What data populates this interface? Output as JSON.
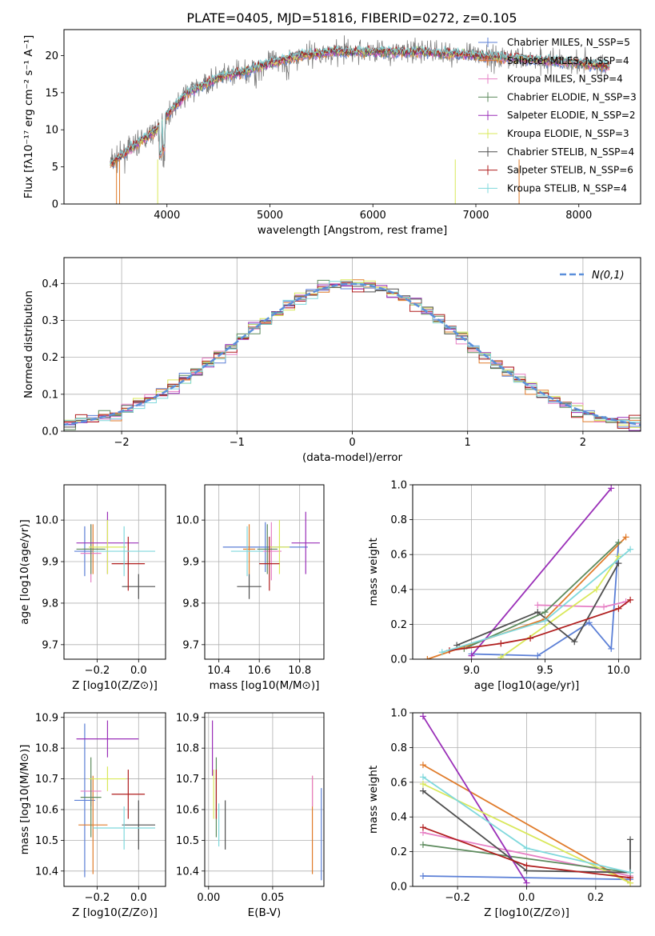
{
  "title": "PLATE=0405, MJD=51816, FIBERID=0272, z=0.105",
  "colors": [
    "#5b7fd6",
    "#e07b2a",
    "#e67fc4",
    "#5c8a5c",
    "#9a2fb8",
    "#d9e85a",
    "#4f4f4f",
    "#b01e1e",
    "#7fd8dc"
  ],
  "chart_data": [
    {
      "type": "line",
      "xlabel": "wavelength [Angstrom, rest frame]",
      "ylabel": "Flux [fλ10⁻¹⁷ erg cm⁻² s⁻¹ A⁻¹]",
      "xlim": [
        3000,
        8600
      ],
      "ylim": [
        0,
        23.5
      ],
      "xticks": [
        "4000",
        "5000",
        "6000",
        "7000",
        "8000"
      ],
      "yticks": [
        "0",
        "5",
        "10",
        "15",
        "20"
      ],
      "grid": false,
      "legend": "upper-right",
      "legend_entries": [
        "Chabrier MILES, N_SSP=5",
        "Salpeter MILES, N_SSP=4",
        "Kroupa MILES, N_SSP=4",
        "Chabrier ELODIE, N_SSP=3",
        "Salpeter ELODIE, N_SSP=2",
        "Kroupa ELODIE, N_SSP=3",
        "Chabrier STELIB, N_SSP=4",
        "Salpeter STELIB, N_SSP=6",
        "Kroupa STELIB, N_SSP=4"
      ],
      "data_flux_knots": [
        [
          3450,
          5.5
        ],
        [
          3600,
          7
        ],
        [
          3700,
          8
        ],
        [
          3900,
          10
        ],
        [
          4000,
          12
        ],
        [
          4200,
          15
        ],
        [
          4500,
          17
        ],
        [
          4800,
          18
        ],
        [
          5000,
          19
        ],
        [
          5300,
          20
        ],
        [
          5600,
          20.5
        ],
        [
          6000,
          20.5
        ],
        [
          6500,
          20.5
        ],
        [
          7000,
          20
        ],
        [
          7500,
          19.5
        ],
        [
          8000,
          19
        ],
        [
          8300,
          18.5
        ]
      ]
    },
    {
      "type": "histogram",
      "xlabel": "(data-model)/error",
      "ylabel": "Normed distribution",
      "xlim": [
        -2.5,
        2.5
      ],
      "ylim": [
        0,
        0.47
      ],
      "xticks": [
        "−2",
        "−1",
        "0",
        "1",
        "2"
      ],
      "yticks": [
        "0.0",
        "0.1",
        "0.2",
        "0.3",
        "0.4"
      ],
      "grid": true,
      "legend": "upper-right",
      "legend_entries": [
        "N(0,1)"
      ],
      "bin_width": 0.1
    },
    {
      "type": "scatter",
      "xlabel": "Z [log10(Z/Z⊙)]",
      "ylabel": "age  [log10(age/yr)]",
      "xlim": [
        -0.36,
        0.13
      ],
      "ylim": [
        9.665,
        10.085
      ],
      "xticks": [
        "−0.2",
        "0.0"
      ],
      "yticks": [
        "9.7",
        "9.8",
        "9.9",
        "10.0"
      ],
      "grid": true,
      "points": [
        {
          "x": -0.26,
          "y": 9.925,
          "xerr": 0.05,
          "yerr": 0.06
        },
        {
          "x": -0.22,
          "y": 9.93,
          "xerr": 0.05,
          "yerr": 0.06
        },
        {
          "x": -0.23,
          "y": 9.92,
          "xerr": 0.05,
          "yerr": 0.07
        },
        {
          "x": -0.23,
          "y": 9.93,
          "xerr": 0.07,
          "yerr": 0.06
        },
        {
          "x": -0.15,
          "y": 9.945,
          "xerr": 0.15,
          "yerr": 0.075
        },
        {
          "x": -0.15,
          "y": 9.935,
          "xerr": 0.09,
          "yerr": 0.065
        },
        {
          "x": 0.0,
          "y": 9.84,
          "xerr": 0.08,
          "yerr": 0.03
        },
        {
          "x": -0.05,
          "y": 9.895,
          "xerr": 0.08,
          "yerr": 0.065
        },
        {
          "x": -0.07,
          "y": 9.925,
          "xerr": 0.15,
          "yerr": 0.06
        }
      ]
    },
    {
      "type": "scatter",
      "xlabel": "mass [log10(M/M⊙)]",
      "ylabel": "",
      "xlim": [
        10.33,
        10.92
      ],
      "ylim": [
        9.665,
        10.085
      ],
      "xticks": [
        "10.4",
        "10.6",
        "10.8"
      ],
      "yticks": [
        "9.7",
        "9.8",
        "9.9",
        "10.0"
      ],
      "grid": true,
      "points": [
        {
          "x": 10.63,
          "y": 9.935,
          "xerr": 0.21,
          "yerr": 0.06
        },
        {
          "x": 10.55,
          "y": 9.93,
          "xerr": 0.03,
          "yerr": 0.06
        },
        {
          "x": 10.66,
          "y": 9.925,
          "xerr": 0.05,
          "yerr": 0.07
        },
        {
          "x": 10.64,
          "y": 9.93,
          "xerr": 0.05,
          "yerr": 0.06
        },
        {
          "x": 10.83,
          "y": 9.945,
          "xerr": 0.07,
          "yerr": 0.075
        },
        {
          "x": 10.7,
          "y": 9.935,
          "xerr": 0.05,
          "yerr": 0.065
        },
        {
          "x": 10.55,
          "y": 9.84,
          "xerr": 0.06,
          "yerr": 0.03
        },
        {
          "x": 10.65,
          "y": 9.895,
          "xerr": 0.05,
          "yerr": 0.065
        },
        {
          "x": 10.54,
          "y": 9.925,
          "xerr": 0.08,
          "yerr": 0.06
        }
      ]
    },
    {
      "type": "line",
      "xlabel": "age  [log10(age/yr)]",
      "ylabel": "mass weight",
      "xlim": [
        8.6,
        10.15
      ],
      "ylim": [
        0,
        1.0
      ],
      "xticks": [
        "9.0",
        "9.5",
        "10.0"
      ],
      "yticks": [
        "0.0",
        "0.2",
        "0.4",
        "0.6",
        "0.8",
        "1.0"
      ],
      "grid": true,
      "series": [
        {
          "points": [
            [
              9.0,
              0.03
            ],
            [
              9.45,
              0.02
            ],
            [
              9.8,
              0.21
            ],
            [
              9.95,
              0.06
            ],
            [
              10.0,
              0.67
            ]
          ]
        },
        {
          "points": [
            [
              8.7,
              0.0
            ],
            [
              9.5,
              0.23
            ],
            [
              10.05,
              0.7
            ]
          ]
        },
        {
          "points": [
            [
              9.45,
              0.31
            ],
            [
              9.9,
              0.3
            ],
            [
              10.05,
              0.33
            ]
          ]
        },
        {
          "points": [
            [
              8.95,
              0.06
            ],
            [
              9.5,
              0.27
            ],
            [
              10.0,
              0.67
            ]
          ]
        },
        {
          "points": [
            [
              9.0,
              0.02
            ],
            [
              9.95,
              0.98
            ]
          ]
        },
        {
          "points": [
            [
              9.2,
              0.01
            ],
            [
              9.85,
              0.4
            ],
            [
              10.0,
              0.59
            ]
          ]
        },
        {
          "points": [
            [
              8.9,
              0.08
            ],
            [
              9.45,
              0.27
            ],
            [
              9.7,
              0.1
            ],
            [
              10.0,
              0.55
            ]
          ]
        },
        {
          "points": [
            [
              8.85,
              0.05
            ],
            [
              9.2,
              0.09
            ],
            [
              9.4,
              0.12
            ],
            [
              10.0,
              0.29
            ],
            [
              10.08,
              0.34
            ]
          ]
        },
        {
          "points": [
            [
              8.8,
              0.04
            ],
            [
              9.5,
              0.22
            ],
            [
              10.08,
              0.63
            ]
          ]
        }
      ]
    },
    {
      "type": "scatter",
      "xlabel": "Z [log10(Z/Z⊙)]",
      "ylabel": "mass [log10(M/M⊙)]",
      "xlim": [
        -0.36,
        0.13
      ],
      "ylim": [
        10.35,
        10.915
      ],
      "xticks": [
        "−0.2",
        "0.0"
      ],
      "yticks": [
        "10.4",
        "10.5",
        "10.6",
        "10.7",
        "10.8",
        "10.9"
      ],
      "grid": true,
      "points": [
        {
          "x": -0.26,
          "y": 10.63,
          "xerr": 0.05,
          "yerr": 0.25
        },
        {
          "x": -0.22,
          "y": 10.55,
          "xerr": 0.07,
          "yerr": 0.16
        },
        {
          "x": -0.23,
          "y": 10.66,
          "xerr": 0.05,
          "yerr": 0.05
        },
        {
          "x": -0.23,
          "y": 10.64,
          "xerr": 0.05,
          "yerr": 0.13
        },
        {
          "x": -0.15,
          "y": 10.83,
          "xerr": 0.15,
          "yerr": 0.06
        },
        {
          "x": -0.15,
          "y": 10.7,
          "xerr": 0.09,
          "yerr": 0.04
        },
        {
          "x": 0.0,
          "y": 10.55,
          "xerr": 0.08,
          "yerr": 0.08
        },
        {
          "x": -0.05,
          "y": 10.65,
          "xerr": 0.08,
          "yerr": 0.08
        },
        {
          "x": -0.07,
          "y": 10.54,
          "xerr": 0.15,
          "yerr": 0.07
        }
      ]
    },
    {
      "type": "scatter",
      "xlabel": "E(B-V)",
      "ylabel": "",
      "xlim": [
        -0.003,
        0.09
      ],
      "ylim": [
        10.35,
        10.915
      ],
      "xticks": [
        "0.00",
        "0.05"
      ],
      "yticks": [
        "10.4",
        "10.5",
        "10.6",
        "10.7",
        "10.8",
        "10.9"
      ],
      "grid": true,
      "points": [
        {
          "x": 0.088,
          "y": 10.52,
          "yerr": 0.15
        },
        {
          "x": 0.081,
          "y": 10.55,
          "yerr": 0.16
        },
        {
          "x": 0.081,
          "y": 10.66,
          "yerr": 0.05
        },
        {
          "x": 0.006,
          "y": 10.64,
          "yerr": 0.13
        },
        {
          "x": 0.003,
          "y": 10.8,
          "yerr": 0.09
        },
        {
          "x": 0.004,
          "y": 10.65,
          "yerr": 0.08
        },
        {
          "x": 0.013,
          "y": 10.55,
          "yerr": 0.08
        },
        {
          "x": 0.006,
          "y": 10.65,
          "yerr": 0.08
        },
        {
          "x": 0.008,
          "y": 10.55,
          "yerr": 0.07
        }
      ]
    },
    {
      "type": "line",
      "xlabel": "Z [log10(Z/Z⊙)]",
      "ylabel": "mass weight",
      "xlim": [
        -0.33,
        0.33
      ],
      "ylim": [
        0,
        1.0
      ],
      "xticks": [
        "−0.2",
        "0.0",
        "0.2"
      ],
      "yticks": [
        "0.0",
        "0.2",
        "0.4",
        "0.6",
        "0.8",
        "1.0"
      ],
      "grid": true,
      "series": [
        {
          "points": [
            [
              -0.3,
              0.06
            ],
            [
              0.3,
              0.04
            ]
          ]
        },
        {
          "points": [
            [
              -0.3,
              0.7
            ],
            [
              0.3,
              0.02
            ]
          ]
        },
        {
          "points": [
            [
              -0.3,
              0.31
            ],
            [
              0.3,
              0.06
            ]
          ]
        },
        {
          "points": [
            [
              -0.3,
              0.24
            ],
            [
              0.3,
              0.08
            ]
          ]
        },
        {
          "points": [
            [
              -0.3,
              0.98
            ],
            [
              0.0,
              0.02
            ]
          ]
        },
        {
          "points": [
            [
              -0.3,
              0.59
            ],
            [
              0.3,
              0.02
            ]
          ]
        },
        {
          "points": [
            [
              -0.3,
              0.55
            ],
            [
              0.0,
              0.09
            ],
            [
              0.3,
              0.08
            ],
            [
              0.3,
              0.27
            ]
          ]
        },
        {
          "points": [
            [
              -0.3,
              0.34
            ],
            [
              0.0,
              0.12
            ],
            [
              0.3,
              0.05
            ]
          ]
        },
        {
          "points": [
            [
              -0.3,
              0.63
            ],
            [
              0.0,
              0.22
            ],
            [
              0.3,
              0.08
            ]
          ]
        }
      ]
    }
  ]
}
